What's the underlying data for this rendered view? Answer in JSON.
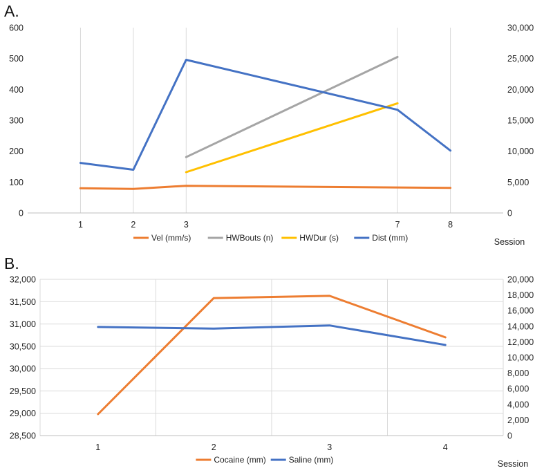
{
  "chart_data": [
    {
      "panel_label": "A.",
      "type": "line",
      "x_axis_kind": "numeric",
      "x_ticks": [
        1,
        2,
        3,
        7,
        8
      ],
      "xlim": [
        0,
        9
      ],
      "xlabel": "Session",
      "ylim_left": [
        0,
        600
      ],
      "y_ticks_left": [
        "0",
        "100",
        "200",
        "300",
        "400",
        "500",
        "600"
      ],
      "ylim_right": [
        0,
        30000
      ],
      "y_ticks_right": [
        "0",
        "5,000",
        "10,000",
        "15,000",
        "20,000",
        "25,000",
        "30,000"
      ],
      "grid": "vertical",
      "legend_position": "bottom",
      "series": [
        {
          "name": "Vel (mm/s)",
          "color": "#ED7D31",
          "axis": "left",
          "x": [
            1,
            2,
            3,
            8
          ],
          "y": [
            80,
            78,
            88,
            81
          ]
        },
        {
          "name": "HWBouts (n)",
          "color": "#A5A5A5",
          "axis": "left",
          "x": [
            3,
            7
          ],
          "y": [
            181,
            505
          ]
        },
        {
          "name": "HWDur (s)",
          "color": "#FFC000",
          "axis": "left",
          "x": [
            3,
            7
          ],
          "y": [
            132,
            355
          ]
        },
        {
          "name": "Dist (mm)",
          "color": "#4472C4",
          "axis": "right",
          "x": [
            1,
            2,
            3,
            7,
            8
          ],
          "y": [
            8100,
            7000,
            24800,
            16700,
            10100
          ]
        }
      ]
    },
    {
      "panel_label": "B.",
      "type": "line",
      "x_axis_kind": "numeric",
      "x_ticks": [
        1,
        2,
        3,
        4
      ],
      "xlim": [
        0.5,
        4.5
      ],
      "xlabel": "Session",
      "ylim_left": [
        28500,
        32000
      ],
      "y_ticks_left": [
        "28,500",
        "29,000",
        "29,500",
        "30,000",
        "30,500",
        "31,000",
        "31,500",
        "32,000"
      ],
      "ylim_right": [
        0,
        20000
      ],
      "y_ticks_right": [
        "0",
        "2,000",
        "4,000",
        "6,000",
        "8,000",
        "10,000",
        "12,000",
        "14,000",
        "16,000",
        "18,000",
        "20,000"
      ],
      "grid": "both",
      "legend_position": "bottom",
      "series": [
        {
          "name": "Cocaine (mm)",
          "color": "#ED7D31",
          "axis": "left",
          "x": [
            1,
            2,
            3,
            4
          ],
          "y": [
            28980,
            31580,
            31630,
            30700
          ]
        },
        {
          "name": "Saline (mm)",
          "color": "#4472C4",
          "axis": "right",
          "x": [
            1,
            2,
            3,
            4
          ],
          "y": [
            13900,
            13700,
            14100,
            11600
          ]
        }
      ]
    }
  ]
}
